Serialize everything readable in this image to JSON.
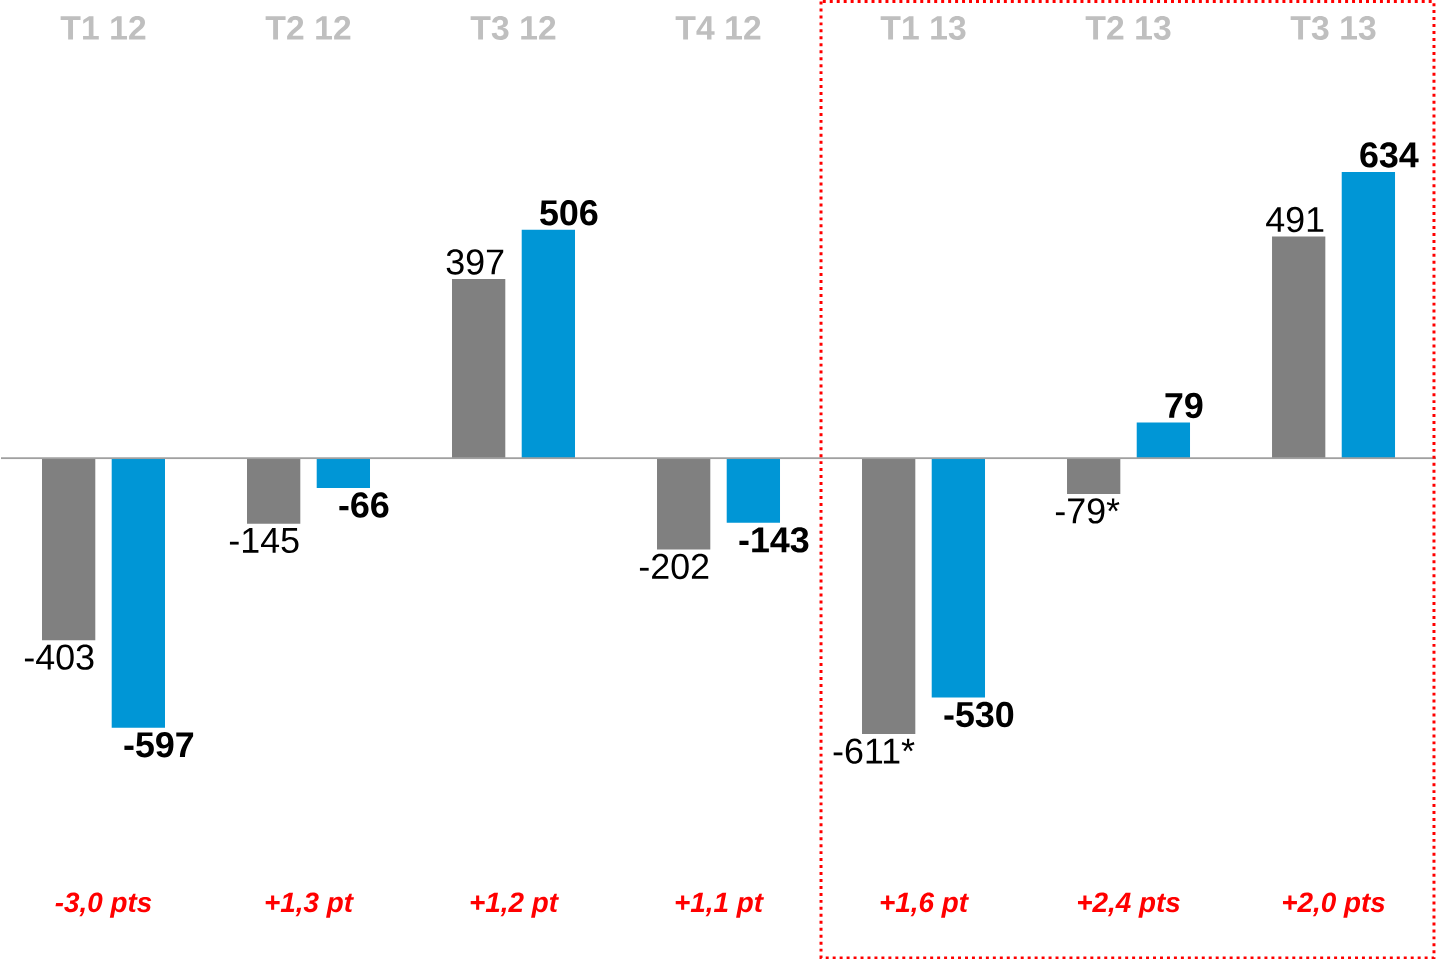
{
  "chart_data": {
    "type": "bar",
    "categories": [
      "T1 12",
      "T2 12",
      "T3 12",
      "T4 12",
      "T1 13",
      "T2 13",
      "T3 13"
    ],
    "series": [
      {
        "color": "#808080",
        "values": [
          -403,
          -145,
          397,
          -202,
          -611,
          -79,
          491
        ],
        "value_labels": [
          "-403",
          "-145",
          "397",
          "-202",
          "-611*",
          "-79*",
          "491"
        ]
      },
      {
        "color": "#0096d6",
        "values": [
          -597,
          -66,
          506,
          -143,
          -530,
          79,
          634
        ],
        "value_labels": [
          "-597",
          "-66",
          "506",
          "-143",
          "-530",
          "79",
          "634"
        ]
      }
    ],
    "annotations": [
      "-3,0 pts",
      "+1,3 pt",
      "+1,2 pt",
      "+1,1 pt",
      "+1,6 pt",
      "+2,4 pts",
      "+2,0 pts"
    ]
  }
}
